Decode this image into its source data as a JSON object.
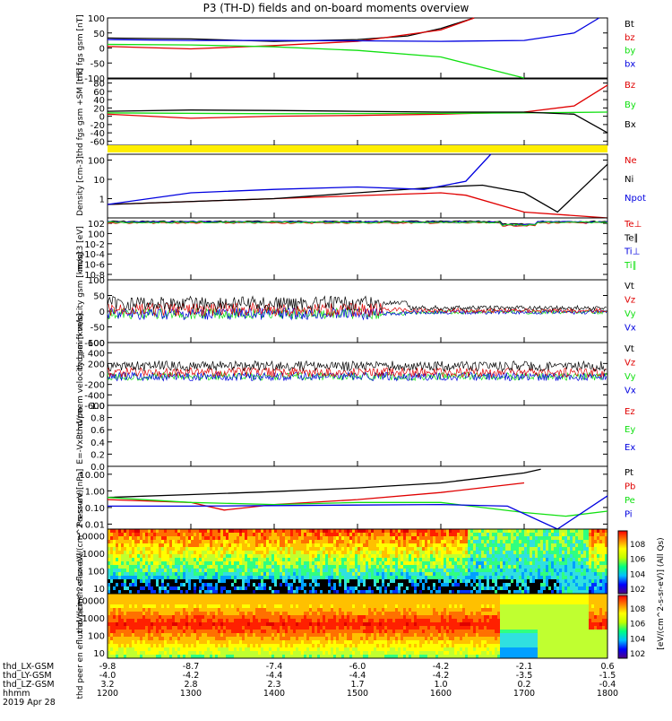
{
  "title": "P3 (TH-D) fields and on-board moments overview",
  "colors": {
    "black": "#000000",
    "red": "#e00000",
    "green": "#10e010",
    "blue": "#0000e0"
  },
  "chart_data": [
    {
      "type": "line",
      "ylabel": "thd fgs gsm [nT]",
      "ylim": [
        -100,
        100
      ],
      "ticks": [
        "100",
        "50",
        "0",
        "-50",
        "-100"
      ],
      "tick_values": [
        100,
        50,
        0,
        -50,
        -100
      ],
      "series": [
        {
          "name": "Bt",
          "color": "black",
          "x": [
            1200,
            1300,
            1400,
            1500,
            1560,
            1600,
            1640
          ],
          "values": [
            33,
            30,
            22,
            28,
            40,
            65,
            100
          ]
        },
        {
          "name": "bz",
          "color": "red",
          "x": [
            1200,
            1300,
            1400,
            1500,
            1600,
            1640
          ],
          "values": [
            5,
            -3,
            8,
            22,
            60,
            100
          ]
        },
        {
          "name": "by",
          "color": "green",
          "x": [
            1200,
            1300,
            1400,
            1500,
            1600,
            1700
          ],
          "values": [
            12,
            10,
            4,
            -8,
            -30,
            -100
          ]
        },
        {
          "name": "bx",
          "color": "blue",
          "x": [
            1200,
            1300,
            1400,
            1500,
            1600,
            1700,
            1760,
            1790
          ],
          "values": [
            28,
            25,
            25,
            24,
            22,
            25,
            50,
            100
          ]
        }
      ]
    },
    {
      "type": "line",
      "ylabel": "thd fgs gsm +SM [nT]",
      "ylim": [
        -70,
        90
      ],
      "ticks": [
        "80",
        "60",
        "40",
        "20",
        "0",
        "-20",
        "-40",
        "-60"
      ],
      "tick_values": [
        80,
        60,
        40,
        20,
        0,
        -20,
        -40,
        -60
      ],
      "series": [
        {
          "name": "Bz",
          "color": "red",
          "x": [
            1200,
            1300,
            1400,
            1500,
            1600,
            1700,
            1760,
            1800
          ],
          "values": [
            5,
            -5,
            0,
            2,
            5,
            10,
            25,
            75
          ]
        },
        {
          "name": "By",
          "color": "green",
          "x": [
            1200,
            1400,
            1600,
            1700,
            1800
          ],
          "values": [
            8,
            6,
            7,
            8,
            10
          ]
        },
        {
          "name": "Bx",
          "color": "black",
          "x": [
            1200,
            1300,
            1400,
            1500,
            1600,
            1700,
            1760,
            1800
          ],
          "values": [
            12,
            15,
            14,
            12,
            10,
            10,
            5,
            -40
          ]
        }
      ]
    },
    {
      "type": "line",
      "ylabel": "Density [cm-3]",
      "ylim": [
        0.1,
        200
      ],
      "log": true,
      "ticks": [
        "100",
        "10",
        "1"
      ],
      "tick_values": [
        100,
        10,
        1
      ],
      "series": [
        {
          "name": "Ne",
          "color": "red",
          "x": [
            1200,
            1400,
            1600,
            1630,
            1700,
            1800
          ],
          "values": [
            0.5,
            1,
            2,
            1.5,
            0.2,
            0.1
          ]
        },
        {
          "name": "Ni",
          "color": "black",
          "x": [
            1200,
            1400,
            1600,
            1650,
            1700,
            1740,
            1800
          ],
          "values": [
            0.5,
            1,
            4,
            5,
            2,
            0.2,
            60
          ]
        },
        {
          "name": "Npot",
          "color": "blue",
          "x": [
            1200,
            1300,
            1400,
            1500,
            1580,
            1630,
            1660
          ],
          "values": [
            0.5,
            2,
            3,
            4,
            3,
            8,
            200
          ]
        }
      ]
    },
    {
      "type": "line",
      "ylabel": "moqt3 [eV]",
      "log": true,
      "ticks": [
        "10^2",
        "10^0",
        "10^-2",
        "10^-4",
        "10^-6",
        "10^-8"
      ],
      "series": [
        {
          "name": "Te⊥",
          "color": "red"
        },
        {
          "name": "Te∥",
          "color": "black"
        },
        {
          "name": "Ti⊥",
          "color": "blue"
        },
        {
          "name": "Ti∥",
          "color": "green"
        }
      ]
    },
    {
      "type": "line",
      "ylabel": "thd peim velocity gsm [km/s]",
      "ylim": [
        -100,
        100
      ],
      "ticks": [
        "100",
        "50",
        "0",
        "-50",
        "-100"
      ],
      "tick_values": [
        100,
        50,
        0,
        -50,
        -100
      ],
      "series": [
        {
          "name": "Vt",
          "color": "black"
        },
        {
          "name": "Vz",
          "color": "red"
        },
        {
          "name": "Vy",
          "color": "green"
        },
        {
          "name": "Vx",
          "color": "blue"
        }
      ]
    },
    {
      "type": "line",
      "ylabel": "thd peem velocity gsm [km/s]",
      "ylim": [
        -600,
        600
      ],
      "ticks": [
        "600",
        "400",
        "200",
        "0",
        "-200",
        "-400",
        "-600"
      ],
      "tick_values": [
        600,
        400,
        200,
        0,
        -200,
        -400,
        -600
      ],
      "series": [
        {
          "name": "Vt",
          "color": "black"
        },
        {
          "name": "Vz",
          "color": "red"
        },
        {
          "name": "Vy",
          "color": "green"
        },
        {
          "name": "Vx",
          "color": "blue"
        }
      ]
    },
    {
      "type": "line",
      "ylabel": "E=-VxB mV/m",
      "ylim": [
        0,
        1
      ],
      "ticks": [
        "1.0",
        "0.8",
        "0.6",
        "0.4",
        "0.2",
        "0.0"
      ],
      "tick_values": [
        1,
        0.8,
        0.6,
        0.4,
        0.2,
        0
      ],
      "series": [
        {
          "name": "Ez",
          "color": "red"
        },
        {
          "name": "Ey",
          "color": "green"
        },
        {
          "name": "Ex",
          "color": "blue"
        }
      ]
    },
    {
      "type": "line",
      "ylabel": "Pressure [nPa]",
      "ylim": [
        0.005,
        30
      ],
      "log": true,
      "ticks": [
        "10.00",
        "1.00",
        "0.10",
        "0.01"
      ],
      "tick_values": [
        10,
        1,
        0.1,
        0.01
      ],
      "series": [
        {
          "name": "Pt",
          "color": "black",
          "x": [
            1200,
            1300,
            1400,
            1500,
            1600,
            1700,
            1720
          ],
          "values": [
            0.4,
            0.6,
            0.9,
            1.5,
            3,
            12,
            20
          ]
        },
        {
          "name": "Pb",
          "color": "red",
          "x": [
            1200,
            1300,
            1340,
            1400,
            1500,
            1600,
            1700
          ],
          "values": [
            0.3,
            0.2,
            0.07,
            0.15,
            0.3,
            0.8,
            3
          ]
        },
        {
          "name": "Pe",
          "color": "green",
          "x": [
            1200,
            1300,
            1400,
            1500,
            1600,
            1700,
            1750,
            1800
          ],
          "values": [
            0.4,
            0.2,
            0.15,
            0.2,
            0.2,
            0.05,
            0.03,
            0.06
          ]
        },
        {
          "name": "Pi",
          "color": "blue",
          "x": [
            1200,
            1300,
            1400,
            1500,
            1600,
            1680,
            1740,
            1800
          ],
          "values": [
            0.12,
            0.12,
            0.13,
            0.14,
            0.15,
            0.12,
            0.005,
            0.5
          ]
        }
      ]
    },
    {
      "type": "heatmap",
      "ylabel": "thd peir en eflux eV/(cm^2-s-sr-eV)",
      "ticks": [
        "10000",
        "1000",
        "100",
        "10"
      ],
      "tick_values": [
        10000,
        1000,
        100,
        10
      ]
    },
    {
      "type": "heatmap",
      "ylabel": "thd peer en eflux eV/(cm^2-s-sr-eV)",
      "ticks": [
        "10000",
        "1000",
        "100",
        "10"
      ],
      "tick_values": [
        10000,
        1000,
        100,
        10
      ]
    }
  ],
  "colorbar": {
    "label": "[eV/(cm^2-s-sr-eV)] (All Qs)",
    "ticks_top": [
      "10^8",
      "10^6",
      "10^4",
      "10^2"
    ],
    "ticks_bottom": [
      "10^8",
      "10^6",
      "10^4",
      "10^2"
    ]
  },
  "x_axis": {
    "row_labels": [
      "thd_LX-GSM",
      "thd_LY-GSM",
      "thd_LZ-GSM",
      "hhmm",
      "2019 Apr 28"
    ],
    "columns": [
      {
        "lx": "-9.8",
        "ly": "-4.0",
        "lz": "3.2",
        "hhmm": "1200"
      },
      {
        "lx": "-8.7",
        "ly": "-4.2",
        "lz": "2.8",
        "hhmm": "1300"
      },
      {
        "lx": "-7.4",
        "ly": "-4.4",
        "lz": "2.3",
        "hhmm": "1400"
      },
      {
        "lx": "-6.0",
        "ly": "-4.4",
        "lz": "1.7",
        "hhmm": "1500"
      },
      {
        "lx": "-4.2",
        "ly": "-4.2",
        "lz": "1.0",
        "hhmm": "1600"
      },
      {
        "lx": "-2.1",
        "ly": "-3.5",
        "lz": "0.2",
        "hhmm": "1700"
      },
      {
        "lx": "0.6",
        "ly": "-1.5",
        "lz": "-0.4",
        "hhmm": "1800"
      }
    ]
  }
}
